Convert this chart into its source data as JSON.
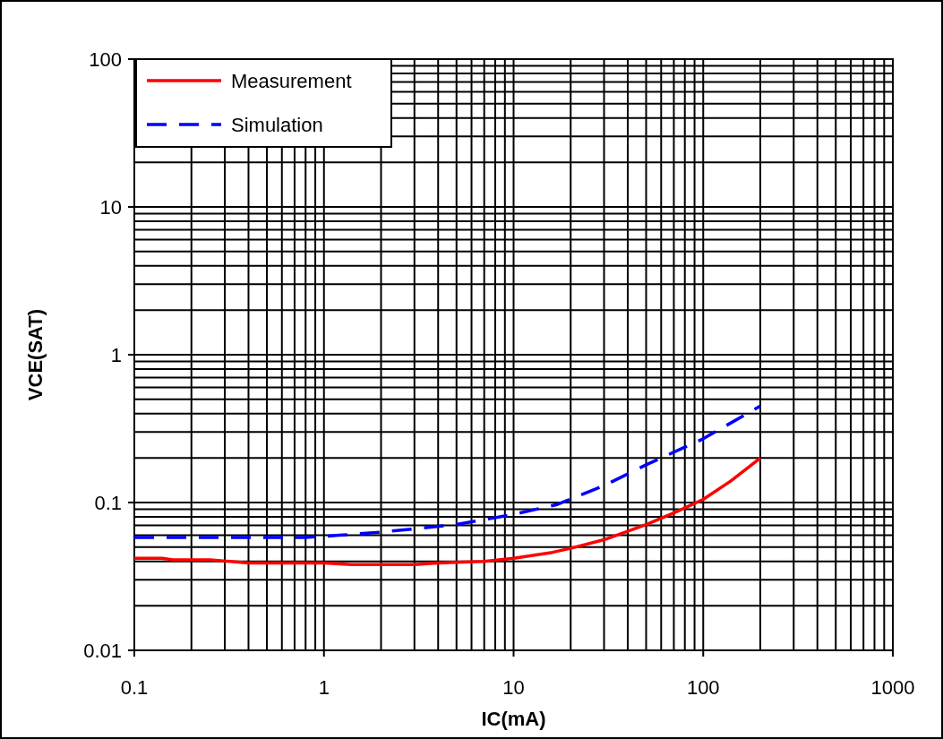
{
  "chart_data": {
    "type": "line",
    "xlabel": "IC(mA)",
    "ylabel": "VCE(SAT)",
    "log": "xy",
    "grid": true,
    "legend": "top left",
    "xlim": [
      0.1,
      1000
    ],
    "xticks": [
      0.1,
      1,
      10,
      100,
      1000
    ],
    "ylim": [
      0.01,
      100
    ],
    "yticks": [
      0.01,
      0.1,
      1,
      10,
      100
    ],
    "series": [
      {
        "name": "Measurement",
        "color": "#ff0000",
        "line_style": "solid",
        "x": [
          0.1,
          0.14,
          0.16,
          0.25,
          0.4,
          1,
          1.4,
          3,
          4,
          7,
          10,
          16,
          20,
          30,
          50,
          70,
          100,
          140,
          200
        ],
        "values": [
          0.042,
          0.042,
          0.041,
          0.041,
          0.039,
          0.039,
          0.038,
          0.038,
          0.039,
          0.04,
          0.042,
          0.046,
          0.049,
          0.056,
          0.071,
          0.085,
          0.105,
          0.14,
          0.2
        ]
      },
      {
        "name": "Simulation",
        "color": "#0000ff",
        "line_style": "dashed",
        "x": [
          0.1,
          0.8,
          1.2,
          2,
          5,
          10,
          17,
          30,
          50,
          100,
          200
        ],
        "values": [
          0.058,
          0.058,
          0.06,
          0.063,
          0.071,
          0.083,
          0.097,
          0.13,
          0.18,
          0.27,
          0.45
        ]
      }
    ]
  }
}
